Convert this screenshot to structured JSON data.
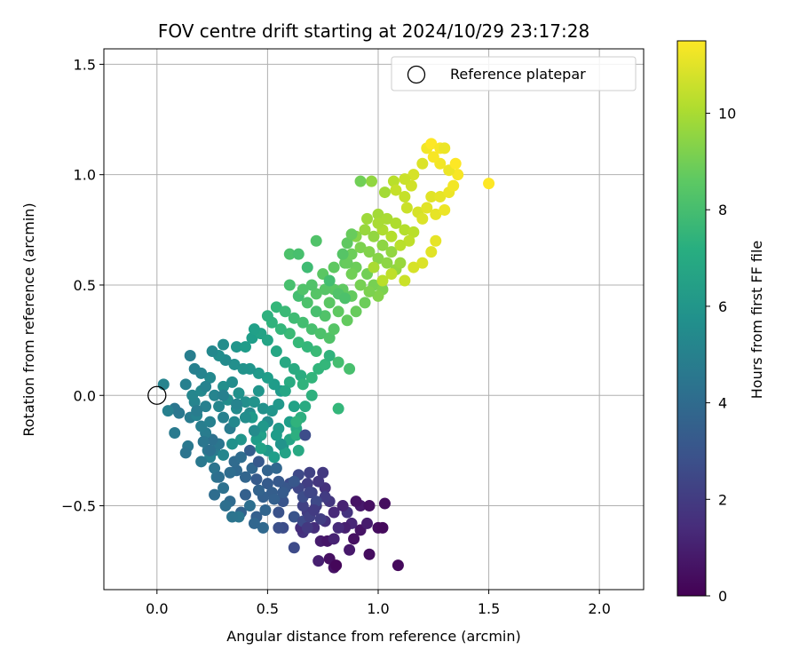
{
  "chart_data": {
    "type": "scatter",
    "title": "FOV centre drift starting at 2024/10/29 23:17:28",
    "xlabel": "Angular distance from reference (arcmin)",
    "ylabel": "Rotation from reference (arcmin)",
    "xlim": [
      -0.24,
      2.2
    ],
    "ylim": [
      -0.88,
      1.57
    ],
    "xticks": [
      0.0,
      0.5,
      1.0,
      1.5,
      2.0
    ],
    "xtick_labels": [
      "0.0",
      "0.5",
      "1.0",
      "1.5",
      "2.0"
    ],
    "yticks": [
      -0.5,
      0.0,
      0.5,
      1.0,
      1.5
    ],
    "ytick_labels": [
      "−0.5",
      "0.0",
      "0.5",
      "1.0",
      "1.5"
    ],
    "grid": true,
    "legend": {
      "placement": "upper-right",
      "entries": [
        "Reference platepar"
      ]
    },
    "reference_point": {
      "x": 0.0,
      "y": 0.0,
      "label": "Reference platepar"
    },
    "colorbar": {
      "label": "Hours from first FF file",
      "colormap": "viridis",
      "range": [
        0,
        11.5
      ],
      "ticks": [
        0,
        2,
        4,
        6,
        8,
        10
      ],
      "tick_labels": [
        "0",
        "2",
        "4",
        "6",
        "8",
        "10"
      ]
    },
    "points": [
      [
        1.09,
        -0.77,
        0.3
      ],
      [
        0.96,
        -0.72,
        0.4
      ],
      [
        0.8,
        -0.78,
        0.6
      ],
      [
        0.78,
        -0.74,
        0.5
      ],
      [
        0.81,
        -0.77,
        0.2
      ],
      [
        0.87,
        -0.7,
        0.8
      ],
      [
        0.73,
        -0.75,
        1.0
      ],
      [
        0.74,
        -0.66,
        0.9
      ],
      [
        0.77,
        -0.66,
        0.7
      ],
      [
        0.8,
        -0.65,
        1.1
      ],
      [
        0.89,
        -0.65,
        0.5
      ],
      [
        0.92,
        -0.61,
        0.6
      ],
      [
        1.0,
        -0.6,
        0.4
      ],
      [
        1.02,
        -0.6,
        0.3
      ],
      [
        0.95,
        -0.58,
        0.9
      ],
      [
        0.88,
        -0.58,
        1.2
      ],
      [
        0.85,
        -0.6,
        1.0
      ],
      [
        0.82,
        -0.6,
        1.4
      ],
      [
        0.71,
        -0.6,
        1.5
      ],
      [
        0.76,
        -0.57,
        1.6
      ],
      [
        0.8,
        -0.53,
        1.3
      ],
      [
        0.86,
        -0.53,
        1.7
      ],
      [
        0.92,
        -0.5,
        0.8
      ],
      [
        0.96,
        -0.5,
        0.5
      ],
      [
        1.03,
        -0.49,
        0.4
      ],
      [
        0.9,
        -0.48,
        0.6
      ],
      [
        0.84,
        -0.5,
        1.1
      ],
      [
        0.78,
        -0.48,
        1.8
      ],
      [
        0.72,
        -0.5,
        1.9
      ],
      [
        0.68,
        -0.53,
        2.0
      ],
      [
        0.66,
        -0.5,
        2.2
      ],
      [
        0.7,
        -0.44,
        2.3
      ],
      [
        0.76,
        -0.42,
        1.6
      ],
      [
        0.73,
        -0.39,
        1.8
      ],
      [
        0.68,
        -0.4,
        2.1
      ],
      [
        0.64,
        -0.42,
        2.4
      ],
      [
        0.69,
        -0.35,
        2.2
      ],
      [
        0.75,
        -0.35,
        1.9
      ],
      [
        0.76,
        -0.46,
        2.0
      ],
      [
        0.64,
        -0.36,
        2.5
      ],
      [
        0.66,
        -0.62,
        1.7
      ],
      [
        0.65,
        -0.6,
        1.5
      ],
      [
        0.62,
        -0.69,
        2.6
      ],
      [
        0.57,
        -0.6,
        2.7
      ],
      [
        0.55,
        -0.6,
        2.8
      ],
      [
        0.55,
        -0.53,
        2.9
      ],
      [
        0.62,
        -0.55,
        3.0
      ],
      [
        0.66,
        -0.57,
        2.6
      ],
      [
        0.6,
        -0.4,
        2.7
      ],
      [
        0.58,
        -0.42,
        3.1
      ],
      [
        0.55,
        -0.39,
        3.2
      ],
      [
        0.5,
        -0.4,
        3.3
      ],
      [
        0.52,
        -0.44,
        3.4
      ],
      [
        0.57,
        -0.48,
        3.0
      ],
      [
        0.48,
        -0.46,
        3.5
      ],
      [
        0.46,
        -0.43,
        3.6
      ],
      [
        0.45,
        -0.38,
        3.3
      ],
      [
        0.43,
        -0.33,
        3.8
      ],
      [
        0.4,
        -0.37,
        3.7
      ],
      [
        0.36,
        -0.34,
        3.9
      ],
      [
        0.35,
        -0.3,
        4.0
      ],
      [
        0.38,
        -0.28,
        4.1
      ],
      [
        0.42,
        -0.25,
        3.4
      ],
      [
        0.46,
        -0.3,
        3.2
      ],
      [
        0.5,
        -0.34,
        3.6
      ],
      [
        0.54,
        -0.33,
        3.8
      ],
      [
        0.33,
        -0.35,
        4.1
      ],
      [
        0.3,
        -0.42,
        4.3
      ],
      [
        0.27,
        -0.37,
        4.4
      ],
      [
        0.33,
        -0.48,
        4.0
      ],
      [
        0.38,
        -0.53,
        3.6
      ],
      [
        0.45,
        -0.55,
        3.5
      ],
      [
        0.48,
        -0.6,
        3.9
      ],
      [
        0.37,
        -0.55,
        4.5
      ],
      [
        0.42,
        -0.5,
        4.2
      ],
      [
        0.4,
        -0.45,
        3.5
      ],
      [
        0.23,
        -0.25,
        4.6
      ],
      [
        0.26,
        -0.25,
        4.7
      ],
      [
        0.28,
        -0.22,
        4.5
      ],
      [
        0.25,
        -0.2,
        4.3
      ],
      [
        0.22,
        -0.17,
        4.8
      ],
      [
        0.2,
        -0.14,
        4.9
      ],
      [
        0.24,
        -0.12,
        5.0
      ],
      [
        0.15,
        -0.1,
        4.8
      ],
      [
        0.1,
        -0.08,
        4.6
      ],
      [
        0.08,
        -0.06,
        4.5
      ],
      [
        0.05,
        -0.07,
        5.0
      ],
      [
        0.08,
        -0.17,
        4.7
      ],
      [
        0.14,
        -0.23,
        4.6
      ],
      [
        0.13,
        -0.26,
        4.4
      ],
      [
        0.18,
        -0.09,
        5.1
      ],
      [
        0.17,
        -0.03,
        5.2
      ],
      [
        0.16,
        0.0,
        5.3
      ],
      [
        0.2,
        0.02,
        5.4
      ],
      [
        0.22,
        -0.05,
        5.0
      ],
      [
        0.26,
        0.0,
        5.2
      ],
      [
        0.28,
        -0.05,
        5.3
      ],
      [
        0.3,
        -0.1,
        5.0
      ],
      [
        0.33,
        -0.15,
        4.8
      ],
      [
        0.35,
        -0.12,
        5.4
      ],
      [
        0.36,
        -0.06,
        5.5
      ],
      [
        0.32,
        -0.02,
        5.6
      ],
      [
        0.3,
        0.04,
        5.7
      ],
      [
        0.34,
        0.06,
        5.6
      ],
      [
        0.37,
        0.01,
        5.8
      ],
      [
        0.4,
        -0.03,
        5.7
      ],
      [
        0.42,
        -0.08,
        5.5
      ],
      [
        0.44,
        -0.03,
        5.9
      ],
      [
        0.46,
        0.02,
        6.0
      ],
      [
        0.48,
        -0.06,
        5.8
      ],
      [
        0.5,
        -0.12,
        5.6
      ],
      [
        0.52,
        -0.07,
        6.0
      ],
      [
        0.55,
        -0.04,
        6.1
      ],
      [
        0.56,
        0.02,
        6.2
      ],
      [
        0.53,
        0.05,
        6.3
      ],
      [
        0.5,
        0.08,
        6.4
      ],
      [
        0.46,
        0.1,
        6.2
      ],
      [
        0.42,
        0.12,
        6.0
      ],
      [
        0.39,
        0.12,
        5.9
      ],
      [
        0.35,
        0.14,
        5.7
      ],
      [
        0.31,
        0.16,
        5.5
      ],
      [
        0.28,
        0.18,
        5.6
      ],
      [
        0.25,
        0.2,
        5.4
      ],
      [
        0.3,
        0.23,
        5.6
      ],
      [
        0.36,
        0.22,
        6.0
      ],
      [
        0.4,
        0.22,
        6.3
      ],
      [
        0.43,
        0.26,
        6.4
      ],
      [
        0.47,
        0.28,
        6.6
      ],
      [
        0.44,
        0.3,
        6.5
      ],
      [
        0.5,
        0.25,
        6.7
      ],
      [
        0.54,
        0.2,
        6.8
      ],
      [
        0.58,
        0.15,
        6.9
      ],
      [
        0.62,
        0.12,
        7.0
      ],
      [
        0.65,
        0.09,
        7.1
      ],
      [
        0.6,
        0.06,
        7.0
      ],
      [
        0.58,
        0.02,
        6.8
      ],
      [
        0.62,
        -0.05,
        6.6
      ],
      [
        0.6,
        -0.12,
        6.4
      ],
      [
        0.55,
        -0.15,
        6.2
      ],
      [
        0.47,
        -0.18,
        6.5
      ],
      [
        0.45,
        -0.2,
        6.3
      ],
      [
        0.5,
        -0.25,
        6.1
      ],
      [
        0.57,
        -0.23,
        6.0
      ],
      [
        0.6,
        -0.2,
        6.7
      ],
      [
        0.63,
        -0.15,
        6.9
      ],
      [
        0.65,
        -0.1,
        7.2
      ],
      [
        0.67,
        -0.05,
        7.0
      ],
      [
        0.7,
        0.0,
        7.3
      ],
      [
        0.66,
        0.05,
        7.4
      ],
      [
        0.7,
        0.08,
        7.5
      ],
      [
        0.73,
        0.12,
        7.5
      ],
      [
        0.76,
        0.14,
        7.6
      ],
      [
        0.78,
        0.18,
        7.4
      ],
      [
        0.72,
        0.2,
        7.8
      ],
      [
        0.68,
        0.22,
        7.6
      ],
      [
        0.64,
        0.24,
        7.7
      ],
      [
        0.6,
        0.28,
        7.8
      ],
      [
        0.56,
        0.3,
        7.6
      ],
      [
        0.52,
        0.33,
        7.4
      ],
      [
        0.5,
        0.36,
        7.3
      ],
      [
        0.54,
        0.4,
        7.6
      ],
      [
        0.58,
        0.38,
        7.8
      ],
      [
        0.62,
        0.35,
        7.9
      ],
      [
        0.66,
        0.33,
        8.0
      ],
      [
        0.7,
        0.3,
        8.1
      ],
      [
        0.74,
        0.28,
        8.2
      ],
      [
        0.78,
        0.26,
        8.3
      ],
      [
        0.8,
        0.3,
        8.4
      ],
      [
        0.76,
        0.36,
        8.3
      ],
      [
        0.72,
        0.38,
        8.1
      ],
      [
        0.68,
        0.42,
        8.2
      ],
      [
        0.64,
        0.45,
        8.0
      ],
      [
        0.6,
        0.5,
        8.1
      ],
      [
        0.66,
        0.48,
        8.3
      ],
      [
        0.72,
        0.46,
        8.4
      ],
      [
        0.78,
        0.42,
        8.5
      ],
      [
        0.82,
        0.38,
        8.6
      ],
      [
        0.86,
        0.34,
        8.7
      ],
      [
        0.9,
        0.38,
        8.8
      ],
      [
        0.94,
        0.42,
        8.9
      ],
      [
        0.88,
        0.45,
        8.7
      ],
      [
        0.84,
        0.48,
        8.6
      ],
      [
        0.8,
        0.48,
        8.5
      ],
      [
        0.76,
        0.48,
        8.4
      ],
      [
        0.7,
        0.5,
        8.3
      ],
      [
        0.75,
        0.55,
        8.5
      ],
      [
        0.8,
        0.58,
        8.6
      ],
      [
        0.85,
        0.6,
        8.7
      ],
      [
        0.9,
        0.58,
        8.9
      ],
      [
        0.95,
        0.55,
        9.0
      ],
      [
        0.98,
        0.5,
        9.1
      ],
      [
        1.02,
        0.48,
        9.2
      ],
      [
        1.0,
        0.45,
        9.3
      ],
      [
        0.96,
        0.47,
        9.2
      ],
      [
        0.92,
        0.5,
        9.1
      ],
      [
        0.88,
        0.55,
        9.0
      ],
      [
        0.86,
        0.6,
        8.8
      ],
      [
        0.88,
        0.64,
        8.9
      ],
      [
        0.92,
        0.67,
        9.2
      ],
      [
        0.96,
        0.65,
        9.3
      ],
      [
        1.0,
        0.62,
        9.4
      ],
      [
        1.04,
        0.6,
        9.5
      ],
      [
        1.08,
        0.57,
        9.6
      ],
      [
        1.1,
        0.6,
        9.7
      ],
      [
        1.06,
        0.65,
        9.6
      ],
      [
        1.02,
        0.68,
        9.5
      ],
      [
        0.98,
        0.72,
        9.6
      ],
      [
        0.94,
        0.75,
        9.7
      ],
      [
        0.9,
        0.72,
        9.4
      ],
      [
        0.95,
        0.8,
        9.8
      ],
      [
        1.0,
        0.82,
        9.9
      ],
      [
        1.04,
        0.8,
        10.0
      ],
      [
        1.08,
        0.78,
        10.1
      ],
      [
        1.12,
        0.75,
        10.2
      ],
      [
        1.16,
        0.74,
        10.3
      ],
      [
        1.14,
        0.7,
        10.4
      ],
      [
        1.1,
        0.68,
        10.3
      ],
      [
        1.06,
        0.72,
        10.2
      ],
      [
        1.02,
        0.75,
        10.1
      ],
      [
        1.0,
        0.78,
        10.0
      ],
      [
        0.97,
        0.97,
        9.6
      ],
      [
        1.03,
        0.92,
        9.9
      ],
      [
        1.07,
        0.97,
        10.3
      ],
      [
        1.12,
        0.9,
        10.5
      ],
      [
        1.15,
        0.95,
        10.7
      ],
      [
        1.13,
        0.85,
        10.6
      ],
      [
        1.18,
        0.83,
        10.8
      ],
      [
        1.2,
        0.8,
        10.9
      ],
      [
        1.22,
        0.85,
        11.0
      ],
      [
        1.26,
        0.82,
        11.1
      ],
      [
        1.3,
        0.84,
        11.2
      ],
      [
        1.24,
        0.9,
        11.0
      ],
      [
        1.28,
        0.9,
        11.1
      ],
      [
        1.32,
        0.92,
        11.2
      ],
      [
        1.34,
        0.95,
        11.3
      ],
      [
        1.36,
        1.0,
        11.4
      ],
      [
        1.32,
        1.02,
        11.2
      ],
      [
        1.28,
        1.05,
        11.3
      ],
      [
        1.25,
        1.08,
        11.4
      ],
      [
        1.22,
        1.12,
        11.3
      ],
      [
        1.24,
        1.14,
        11.5
      ],
      [
        1.28,
        1.12,
        11.4
      ],
      [
        1.3,
        1.12,
        11.2
      ],
      [
        1.35,
        1.05,
        11.5
      ],
      [
        1.2,
        1.05,
        10.9
      ],
      [
        1.16,
        1.0,
        10.8
      ],
      [
        1.12,
        0.98,
        10.6
      ],
      [
        1.08,
        0.93,
        10.5
      ],
      [
        1.5,
        0.96,
        11.5
      ],
      [
        1.2,
        0.6,
        10.9
      ],
      [
        1.24,
        0.65,
        11.0
      ],
      [
        1.26,
        0.7,
        11.1
      ],
      [
        1.16,
        0.58,
        10.8
      ],
      [
        1.12,
        0.52,
        10.6
      ],
      [
        1.06,
        0.55,
        10.4
      ],
      [
        1.02,
        0.52,
        10.3
      ],
      [
        0.98,
        0.58,
        10.0
      ],
      [
        0.6,
        0.64,
        8.2
      ],
      [
        0.64,
        0.64,
        8.1
      ],
      [
        0.68,
        0.58,
        7.9
      ],
      [
        0.72,
        0.7,
        8.3
      ],
      [
        0.78,
        0.52,
        8.0
      ],
      [
        0.82,
        0.46,
        8.3
      ],
      [
        0.85,
        0.44,
        8.2
      ],
      [
        0.84,
        0.64,
        8.4
      ],
      [
        0.86,
        0.69,
        8.6
      ],
      [
        0.88,
        0.73,
        8.8
      ],
      [
        0.92,
        0.97,
        9.0
      ],
      [
        0.82,
        0.15,
        8.0
      ],
      [
        0.87,
        0.12,
        8.1
      ],
      [
        0.82,
        -0.06,
        7.6
      ],
      [
        0.63,
        -0.12,
        7.4
      ],
      [
        0.63,
        -0.18,
        7.2
      ],
      [
        0.64,
        -0.25,
        6.9
      ],
      [
        0.58,
        -0.26,
        6.6
      ],
      [
        0.53,
        -0.28,
        6.4
      ],
      [
        0.47,
        -0.24,
        6.6
      ],
      [
        0.43,
        -0.1,
        6.2
      ],
      [
        0.38,
        -0.2,
        6.0
      ],
      [
        0.34,
        -0.22,
        5.8
      ],
      [
        0.3,
        -0.27,
        5.3
      ],
      [
        0.24,
        -0.28,
        5.0
      ],
      [
        0.2,
        -0.3,
        4.6
      ],
      [
        0.26,
        -0.33,
        4.4
      ],
      [
        0.28,
        -0.37,
        4.2
      ],
      [
        0.26,
        -0.45,
        4.1
      ],
      [
        0.31,
        -0.5,
        4.2
      ],
      [
        0.34,
        -0.55,
        4.4
      ],
      [
        0.44,
        -0.58,
        3.8
      ],
      [
        0.49,
        -0.52,
        3.7
      ],
      [
        0.53,
        -0.47,
        3.5
      ],
      [
        0.57,
        -0.44,
        3.3
      ],
      [
        0.62,
        -0.39,
        3.1
      ],
      [
        0.66,
        -0.46,
        2.7
      ],
      [
        0.69,
        -0.44,
        2.4
      ],
      [
        0.72,
        -0.48,
        2.5
      ],
      [
        0.69,
        -0.55,
        2.2
      ],
      [
        0.68,
        -0.6,
        1.9
      ],
      [
        0.71,
        -0.52,
        2.0
      ],
      [
        0.74,
        -0.56,
        2.1
      ],
      [
        0.67,
        -0.18,
        2.7
      ],
      [
        0.56,
        -0.22,
        5.9
      ],
      [
        0.54,
        -0.18,
        6.3
      ],
      [
        0.48,
        -0.14,
        6.1
      ],
      [
        0.44,
        -0.16,
        5.5
      ],
      [
        0.4,
        -0.1,
        5.6
      ],
      [
        0.36,
        -0.04,
        5.2
      ],
      [
        0.3,
        0.0,
        5.0
      ],
      [
        0.24,
        0.08,
        5.4
      ],
      [
        0.2,
        0.1,
        5.2
      ],
      [
        0.17,
        0.12,
        5.0
      ],
      [
        0.22,
        0.04,
        5.1
      ],
      [
        0.13,
        0.05,
        5.0
      ],
      [
        0.03,
        0.05,
        5.2
      ],
      [
        0.15,
        0.18,
        4.9
      ],
      [
        0.18,
        -0.07,
        4.8
      ],
      [
        0.21,
        -0.21,
        4.5
      ],
      [
        0.24,
        -0.25,
        4.3
      ]
    ]
  }
}
